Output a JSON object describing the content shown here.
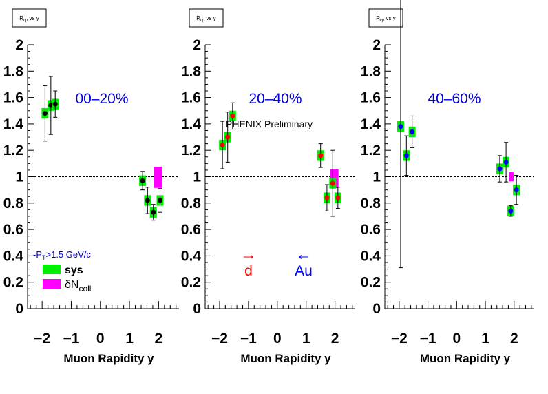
{
  "chart_data": [
    {
      "type": "scatter",
      "title_box": "R_cp vs y",
      "xlabel": "Muon Rapidity y",
      "ylabel": "",
      "xlim": [
        -2.5,
        2.7
      ],
      "ylim": [
        0,
        2
      ],
      "x_ticks": [
        "-2",
        "-1",
        "0",
        "1",
        "2"
      ],
      "y_ticks": [
        "0",
        "0.2",
        "0.4",
        "0.6",
        "0.8",
        "1",
        "1.2",
        "1.4",
        "1.6",
        "1.8",
        "2"
      ],
      "reference_line": 1,
      "centrality_label": "00–20%",
      "marker_color": "#000000",
      "points": [
        {
          "x": -1.9,
          "y": 1.48,
          "err": 0.21,
          "sys": 0.04
        },
        {
          "x": -1.7,
          "y": 1.54,
          "err": 0.22,
          "sys": 0.04
        },
        {
          "x": -1.55,
          "y": 1.55,
          "err": 0.1,
          "sys": 0.04
        },
        {
          "x": 1.45,
          "y": 0.97,
          "err": 0.07,
          "sys": 0.04
        },
        {
          "x": 1.62,
          "y": 0.82,
          "err": 0.1,
          "sys": 0.04
        },
        {
          "x": 1.82,
          "y": 0.73,
          "err": 0.06,
          "sys": 0.04
        },
        {
          "x": 2.05,
          "y": 0.82,
          "err": 0.09,
          "sys": 0.04
        }
      ],
      "ncoll_box": {
        "x": 1.98,
        "y": 0.995,
        "half_width": 0.14,
        "half_height": 0.08
      },
      "legend": {
        "pt_cut": "-P_T>1.5 GeV/c",
        "entries": [
          {
            "label": "sys",
            "color": "#00ee00"
          },
          {
            "label": "δN_coll",
            "color": "#ff00ff"
          }
        ]
      }
    },
    {
      "type": "scatter",
      "title_box": "R_cp vs y",
      "xlabel": "Muon Rapidity y",
      "ylabel": "",
      "xlim": [
        -2.5,
        2.7
      ],
      "ylim": [
        0,
        2
      ],
      "x_ticks": [
        "-2",
        "-1",
        "0",
        "1",
        "2"
      ],
      "y_ticks": [
        "0",
        "0.2",
        "0.4",
        "0.6",
        "0.8",
        "1",
        "1.2",
        "1.4",
        "1.6",
        "1.8",
        "2"
      ],
      "reference_line": 1,
      "centrality_label": "20–40%",
      "marker_color": "#ff0000",
      "annotation": "PHENIX Preliminary",
      "direction_labels": [
        {
          "text": "d",
          "color": "#ff0000",
          "arrow": "right"
        },
        {
          "text": "Au",
          "color": "#0000ff",
          "arrow": "left"
        }
      ],
      "points": [
        {
          "x": -1.9,
          "y": 1.24,
          "err": 0.18,
          "sys": 0.04
        },
        {
          "x": -1.72,
          "y": 1.3,
          "err": 0.19,
          "sys": 0.04
        },
        {
          "x": -1.55,
          "y": 1.46,
          "err": 0.1,
          "sys": 0.04
        },
        {
          "x": 1.5,
          "y": 1.16,
          "err": 0.09,
          "sys": 0.04
        },
        {
          "x": 1.72,
          "y": 0.84,
          "err": 0.1,
          "sys": 0.04
        },
        {
          "x": 1.92,
          "y": 0.95,
          "err": 0.25,
          "sys": 0.04
        },
        {
          "x": 2.1,
          "y": 0.84,
          "err": 0.08,
          "sys": 0.04
        }
      ],
      "ncoll_box": {
        "x": 1.98,
        "y": 0.985,
        "half_width": 0.14,
        "half_height": 0.07
      }
    },
    {
      "type": "scatter",
      "title_box": "R_cp vs y",
      "xlabel": "Muon Rapidity y",
      "ylabel": "",
      "xlim": [
        -2.5,
        2.7
      ],
      "ylim": [
        0,
        2
      ],
      "x_ticks": [
        "-2",
        "-1",
        "0",
        "1",
        "2"
      ],
      "y_ticks": [
        "0",
        "0.2",
        "0.4",
        "0.6",
        "0.8",
        "1",
        "1.2",
        "1.4",
        "1.6",
        "1.8",
        "2"
      ],
      "reference_line": 1,
      "centrality_label": "40–60%",
      "marker_color": "#0000ff",
      "points": [
        {
          "x": -1.95,
          "y": 1.38,
          "err": 1.07,
          "sys": 0.04
        },
        {
          "x": -1.75,
          "y": 1.16,
          "err": 0.15,
          "sys": 0.04
        },
        {
          "x": -1.55,
          "y": 1.34,
          "err": 0.12,
          "sys": 0.04
        },
        {
          "x": 1.5,
          "y": 1.06,
          "err": 0.1,
          "sys": 0.04
        },
        {
          "x": 1.72,
          "y": 1.11,
          "err": 0.15,
          "sys": 0.04
        },
        {
          "x": 1.88,
          "y": 0.74,
          "err": 0.04,
          "sys": 0.04
        },
        {
          "x": 2.08,
          "y": 0.9,
          "err": 0.11,
          "sys": 0.04
        }
      ],
      "ncoll_box": {
        "x": 1.9,
        "y": 1.0,
        "half_width": 0.08,
        "half_height": 0.035
      }
    }
  ]
}
